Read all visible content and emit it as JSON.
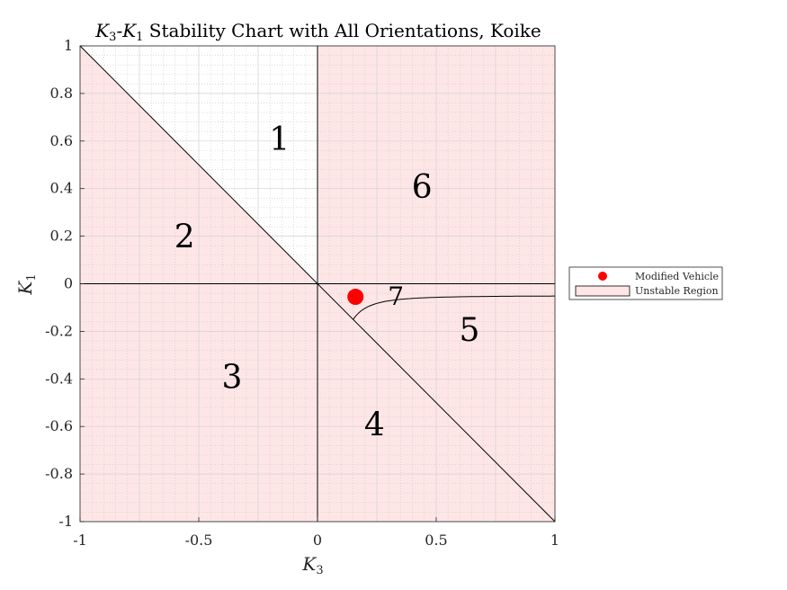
{
  "chart_data": {
    "type": "scatter",
    "title": {
      "prefix": "K",
      "sub1": "3",
      "dash": "-K",
      "sub2": "1",
      "suffix": " Stability Chart with All Orientations, Koike"
    },
    "xlabel": {
      "main": "K",
      "sub": "3"
    },
    "ylabel": {
      "main": "K",
      "sub": "1"
    },
    "xlim": [
      -1,
      1
    ],
    "ylim": [
      -1,
      1
    ],
    "xticks": [
      -1,
      -0.5,
      0,
      0.5,
      1
    ],
    "xtick_labels": [
      "-1",
      "-0.5",
      "0",
      "0.5",
      "1"
    ],
    "yticks": [
      -1,
      -0.8,
      -0.6,
      -0.4,
      -0.2,
      0,
      0.2,
      0.4,
      0.6,
      0.8,
      1
    ],
    "ytick_labels": [
      "-1",
      "-0.8",
      "-0.6",
      "-0.4",
      "-0.2",
      "0",
      "0.2",
      "0.4",
      "0.6",
      "0.8",
      "1"
    ],
    "grid": true,
    "minor_grid": true,
    "legend_position": "outside-right",
    "unstable_color": "#ffe6e6",
    "boundary_color": "#000000",
    "point_color": "#ff0000",
    "series": [
      {
        "name": "Modified Vehicle",
        "points": [
          [
            0.16,
            -0.055
          ]
        ]
      }
    ],
    "legend": [
      {
        "label": "Modified Vehicle",
        "marker": "dot"
      },
      {
        "label": "Unstable Region",
        "marker": "patch"
      }
    ],
    "regions": [
      {
        "label": "1",
        "x": -0.16,
        "y": 0.61
      },
      {
        "label": "2",
        "x": -0.56,
        "y": 0.2
      },
      {
        "label": "3",
        "x": -0.36,
        "y": -0.39
      },
      {
        "label": "4",
        "x": 0.24,
        "y": -0.59
      },
      {
        "label": "5",
        "x": 0.64,
        "y": -0.19
      },
      {
        "label": "6",
        "x": 0.44,
        "y": 0.41
      },
      {
        "label": "7",
        "x": 0.33,
        "y": -0.04
      }
    ]
  }
}
